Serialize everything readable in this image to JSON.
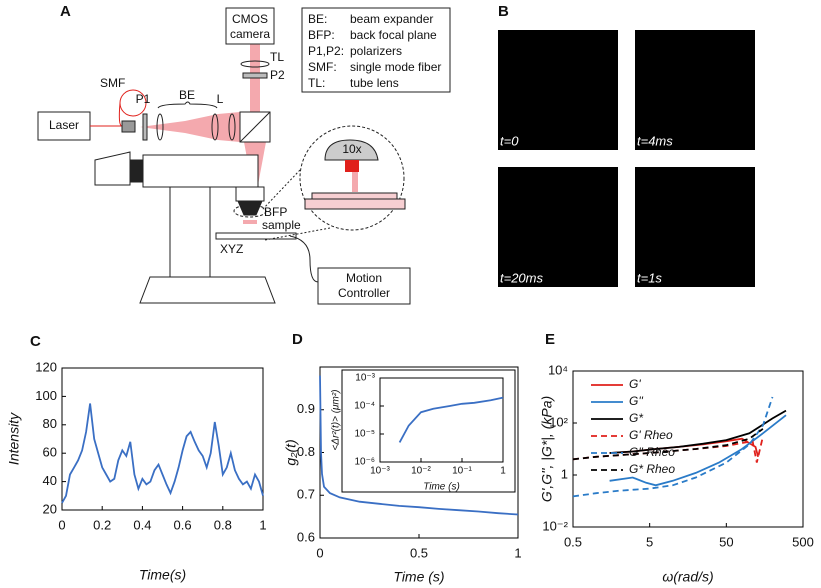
{
  "panel_labels": [
    "A",
    "B",
    "C",
    "D",
    "E"
  ],
  "diagram": {
    "camera": [
      "CMOS",
      "camera"
    ],
    "laser": "Laser",
    "smf": "SMF",
    "p1": "P1",
    "be": "BE",
    "l": "L",
    "tl": "TL",
    "p2": "P2",
    "objective": "10x",
    "bfp": "BFP",
    "sample": "sample",
    "xyz": "XYZ",
    "controller": [
      "Motion",
      "Controller"
    ],
    "legend": [
      [
        "BE:",
        "beam expander"
      ],
      [
        "BFP:",
        "back focal plane"
      ],
      [
        "P1,P2:",
        "polarizers"
      ],
      [
        "SMF:",
        "single mode fiber"
      ],
      [
        "TL:",
        "tube lens"
      ]
    ]
  },
  "images": {
    "labels": [
      "t=0",
      "t=4ms",
      "t=20ms",
      "t=1s"
    ]
  },
  "chart_data": [
    {
      "type": "line",
      "xlabel": "Time(s)",
      "ylabel": "Intensity",
      "color": "#3a6fc4",
      "x": [
        0,
        0.02,
        0.04,
        0.06,
        0.08,
        0.1,
        0.12,
        0.14,
        0.16,
        0.18,
        0.2,
        0.22,
        0.24,
        0.26,
        0.28,
        0.3,
        0.32,
        0.34,
        0.36,
        0.38,
        0.4,
        0.42,
        0.44,
        0.46,
        0.48,
        0.5,
        0.52,
        0.54,
        0.56,
        0.58,
        0.6,
        0.62,
        0.64,
        0.66,
        0.68,
        0.7,
        0.72,
        0.74,
        0.76,
        0.78,
        0.8,
        0.82,
        0.84,
        0.86,
        0.88,
        0.9,
        0.92,
        0.94,
        0.96,
        0.98,
        1
      ],
      "values": [
        25,
        30,
        45,
        50,
        55,
        62,
        75,
        95,
        70,
        60,
        50,
        45,
        40,
        42,
        55,
        62,
        58,
        68,
        45,
        35,
        42,
        38,
        40,
        48,
        52,
        45,
        38,
        32,
        40,
        50,
        62,
        72,
        75,
        68,
        62,
        58,
        50,
        60,
        82,
        65,
        45,
        50,
        60,
        48,
        42,
        38,
        40,
        35,
        45,
        40,
        30
      ],
      "xlim": [
        0,
        1
      ],
      "ylim": [
        20,
        120
      ],
      "xticks": [
        0,
        0.2,
        0.4,
        0.6,
        0.8,
        1
      ],
      "yticks": [
        20,
        40,
        60,
        80,
        100,
        120
      ]
    },
    {
      "type": "line",
      "xlabel": "Time (s)",
      "ylabel": "g₂(t)",
      "color": "#3a6fc4",
      "x": [
        0,
        0.005,
        0.01,
        0.02,
        0.05,
        0.1,
        0.2,
        0.3,
        0.4,
        0.5,
        0.6,
        0.7,
        0.8,
        0.9,
        1
      ],
      "values": [
        0.98,
        0.8,
        0.75,
        0.72,
        0.705,
        0.695,
        0.685,
        0.68,
        0.675,
        0.672,
        0.668,
        0.665,
        0.662,
        0.658,
        0.655
      ],
      "xlim": [
        0,
        1
      ],
      "ylim": [
        0.6,
        1.0
      ],
      "xticks": [
        0,
        0.5,
        1
      ],
      "yticks": [
        0.6,
        0.7,
        0.8,
        0.9
      ]
    },
    {
      "type": "line",
      "xlabel": "Time (s)",
      "ylabel": "<Δr²(t)> (μm²)",
      "color": "#3a6fc4",
      "xscale": "log",
      "yscale": "log",
      "x": [
        0.003,
        0.005,
        0.01,
        0.02,
        0.05,
        0.1,
        0.2,
        0.5,
        1
      ],
      "values": [
        5e-06,
        2e-05,
        6e-05,
        8e-05,
        0.0001,
        0.00012,
        0.00013,
        0.00016,
        0.0002
      ],
      "xlim": [
        0.001,
        1
      ],
      "ylim": [
        1e-06,
        0.001
      ],
      "xticks": [
        {
          "value": 0.001,
          "label": "10⁻³"
        },
        {
          "value": 0.01,
          "label": "10⁻²"
        },
        {
          "value": 0.1,
          "label": "10⁻¹"
        },
        1
      ],
      "yticks": [
        {
          "value": 1e-06,
          "label": "10⁻⁶"
        },
        {
          "value": 1e-05,
          "label": "10⁻⁵"
        },
        {
          "value": 0.0001,
          "label": "10⁻⁴"
        },
        {
          "value": 0.001,
          "label": "10⁻³"
        }
      ]
    },
    {
      "type": "line",
      "xlabel": "ω(rad/s)",
      "ylabel": "G',G'', |G*|, (kPa)",
      "xscale": "log",
      "yscale": "log",
      "legend": "upper left",
      "xlim": [
        0.5,
        500
      ],
      "ylim": [
        0.01,
        10000
      ],
      "xticks": [
        0.5,
        5,
        50,
        500
      ],
      "yticks": [
        {
          "value": 0.01,
          "label": "10⁻²"
        },
        1,
        {
          "value": 100,
          "label": "10²"
        },
        {
          "value": 10000,
          "label": "10⁴"
        }
      ],
      "series": [
        {
          "name": "G'",
          "color": "#e0201b",
          "dash": false,
          "x": [
            1.5,
            3,
            6,
            12,
            25,
            50,
            80,
            120,
            130
          ],
          "values": [
            7,
            8,
            10,
            12,
            15,
            20,
            25,
            12,
            5
          ]
        },
        {
          "name": "G''",
          "color": "#2a7bc8",
          "dash": false,
          "x": [
            1.5,
            3,
            4.5,
            6,
            10,
            20,
            40,
            80,
            150,
            300
          ],
          "values": [
            0.6,
            0.8,
            0.5,
            0.4,
            0.6,
            1.2,
            3,
            10,
            40,
            200
          ]
        },
        {
          "name": "G*",
          "color": "#000000",
          "dash": false,
          "x": [
            1.5,
            3,
            6,
            12,
            25,
            50,
            100,
            200,
            300
          ],
          "values": [
            7,
            8,
            10,
            12,
            16,
            22,
            40,
            150,
            300
          ]
        },
        {
          "name": "G' Rheo",
          "color": "#e0201b",
          "dash": true,
          "x": [
            0.5,
            1,
            5,
            20,
            50,
            80,
            110,
            125,
            150
          ],
          "values": [
            4,
            5,
            7,
            10,
            13,
            17,
            20,
            3,
            30
          ]
        },
        {
          "name": "G'' Rheo",
          "color": "#2a7bc8",
          "dash": true,
          "x": [
            0.5,
            1,
            2,
            5,
            10,
            20,
            50,
            100,
            150,
            200
          ],
          "values": [
            0.15,
            0.2,
            0.25,
            0.3,
            0.4,
            0.8,
            3,
            15,
            80,
            1000
          ]
        },
        {
          "name": "G* Rheo",
          "color": "#000000",
          "dash": true,
          "x": [
            0.5,
            1,
            5,
            20,
            50,
            100,
            150
          ],
          "values": [
            4,
            5,
            7,
            10,
            14,
            25,
            60
          ]
        }
      ]
    }
  ]
}
